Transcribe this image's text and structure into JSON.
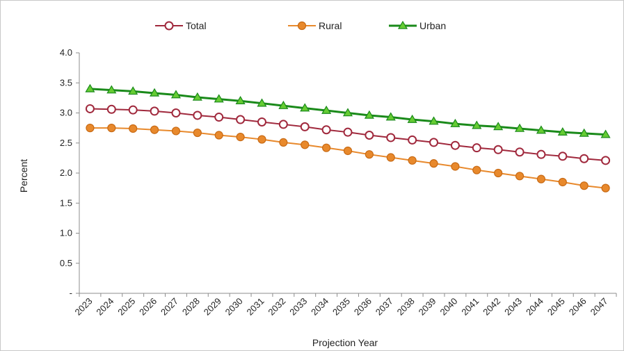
{
  "chart_data": {
    "type": "line",
    "xlabel": "Projection Year",
    "ylabel": "Percent",
    "categories": [
      "2023",
      "2024",
      "2025",
      "2026",
      "2027",
      "2028",
      "2029",
      "2030",
      "2031",
      "2032",
      "2033",
      "2034",
      "2035",
      "2036",
      "2037",
      "2038",
      "2039",
      "2040",
      "2041",
      "2042",
      "2043",
      "2044",
      "2045",
      "2046",
      "2047"
    ],
    "y_ticks": [
      "-",
      "0.5",
      "1.0",
      "1.5",
      "2.0",
      "2.5",
      "3.0",
      "3.5",
      "4.0"
    ],
    "ylim": [
      0,
      4.0
    ],
    "grid": false,
    "legend_position": "top",
    "series": [
      {
        "name": "Total",
        "color": "#a0283c",
        "marker": "circle-open",
        "values": [
          3.07,
          3.06,
          3.05,
          3.03,
          3.0,
          2.96,
          2.93,
          2.89,
          2.85,
          2.81,
          2.77,
          2.72,
          2.68,
          2.63,
          2.59,
          2.55,
          2.51,
          2.46,
          2.42,
          2.39,
          2.35,
          2.31,
          2.28,
          2.24,
          2.21
        ]
      },
      {
        "name": "Rural",
        "color": "#e8892c",
        "marker": "circle-filled",
        "values": [
          2.75,
          2.75,
          2.74,
          2.72,
          2.7,
          2.67,
          2.63,
          2.6,
          2.56,
          2.51,
          2.47,
          2.42,
          2.37,
          2.31,
          2.26,
          2.21,
          2.16,
          2.11,
          2.05,
          2.0,
          1.95,
          1.9,
          1.85,
          1.79,
          1.75
        ]
      },
      {
        "name": "Urban",
        "color": "#1a8a1a",
        "marker": "triangle-filled",
        "values": [
          3.4,
          3.38,
          3.36,
          3.33,
          3.3,
          3.26,
          3.23,
          3.2,
          3.16,
          3.12,
          3.08,
          3.04,
          3.0,
          2.96,
          2.93,
          2.89,
          2.86,
          2.82,
          2.79,
          2.77,
          2.74,
          2.71,
          2.68,
          2.66,
          2.64
        ]
      }
    ]
  }
}
